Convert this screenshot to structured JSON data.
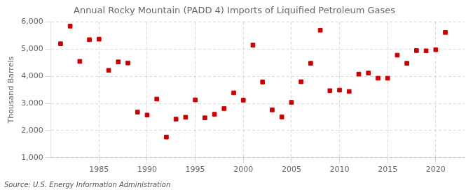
{
  "chart_data": {
    "type": "scatter",
    "title": "Annual Rocky Mountain (PADD 4) Imports of Liquified Petroleum Gases",
    "ylabel": "Thousand Barrels",
    "annotations": [
      "Source: U.S. Energy Information Administration"
    ],
    "x": [
      1981,
      1982,
      1983,
      1984,
      1985,
      1986,
      1987,
      1988,
      1989,
      1990,
      1991,
      1992,
      1993,
      1994,
      1995,
      1996,
      1997,
      1998,
      1999,
      2000,
      2001,
      2002,
      2003,
      2004,
      2005,
      2006,
      2007,
      2008,
      2009,
      2010,
      2011,
      2012,
      2013,
      2014,
      2015,
      2016,
      2017,
      2018,
      2019,
      2020,
      2021
    ],
    "values": [
      5200,
      5850,
      4550,
      5350,
      5370,
      4220,
      4530,
      4490,
      2680,
      2570,
      3160,
      1760,
      2420,
      2490,
      3130,
      2470,
      2600,
      2810,
      3390,
      3120,
      5150,
      3790,
      2760,
      2500,
      3040,
      3800,
      4480,
      5700,
      3470,
      3490,
      3440,
      4080,
      4120,
      3930,
      3930,
      4780,
      4480,
      4950,
      4940,
      4980,
      5620
    ],
    "color": "#cc0000",
    "marker": "square",
    "xlim": [
      1980,
      2023
    ],
    "xticks": [
      1985,
      1990,
      1995,
      2000,
      2005,
      2010,
      2015,
      2020
    ],
    "ylim": [
      1000,
      6000
    ],
    "yticks": [
      {
        "value": 1000,
        "label": "1,000"
      },
      {
        "value": 2000,
        "label": "2,000"
      },
      {
        "value": 3000,
        "label": "3,000"
      },
      {
        "value": 4000,
        "label": "4,000"
      },
      {
        "value": 5000,
        "label": "5,000"
      },
      {
        "value": 6000,
        "label": "6,000"
      }
    ],
    "grid": true,
    "legend": false
  }
}
